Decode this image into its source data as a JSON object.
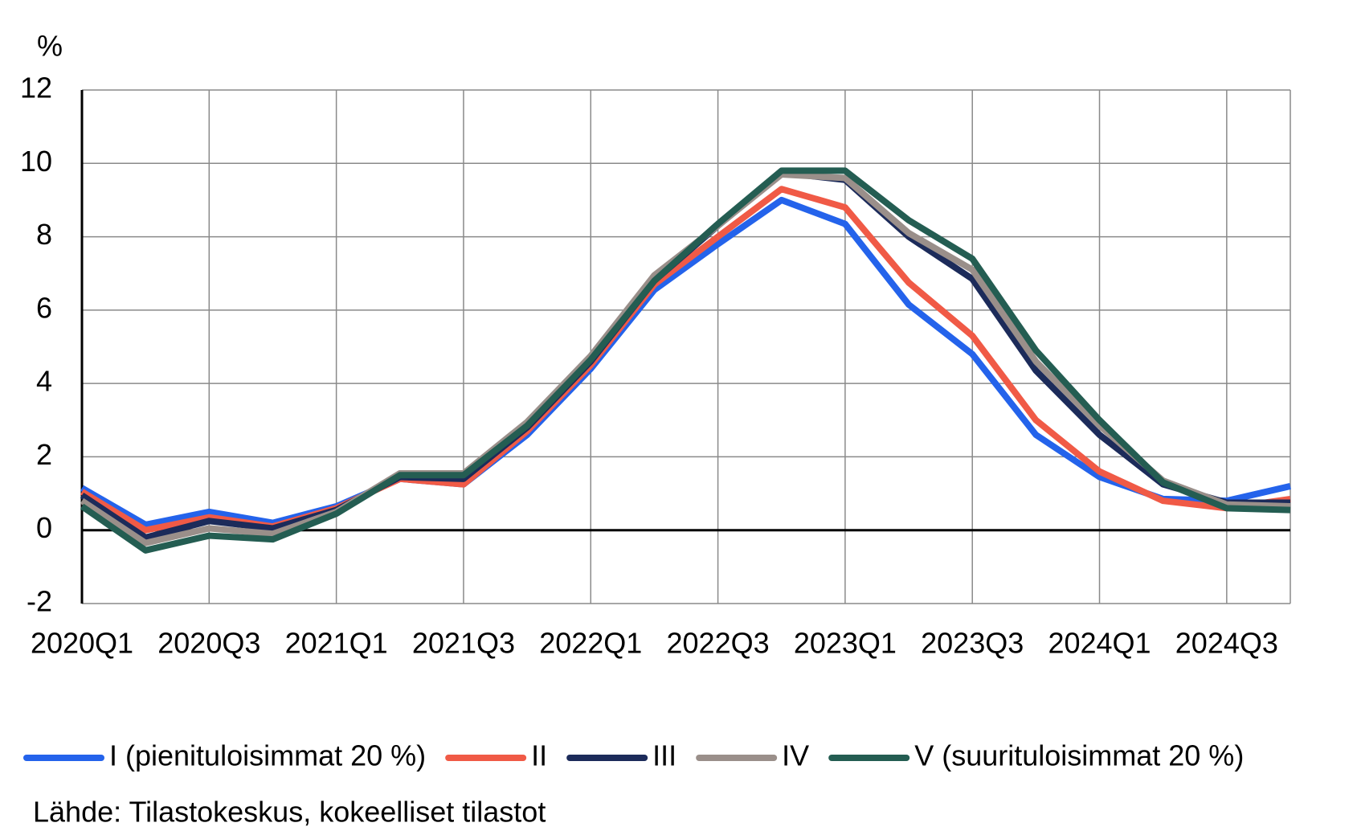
{
  "chart_data": {
    "type": "line",
    "y_label": "%",
    "source": "Lähde: Tilastokeskus, kokeelliset tilastot",
    "categories": [
      "2020Q1",
      null,
      "2020Q3",
      null,
      "2021Q1",
      null,
      "2021Q3",
      null,
      "2022Q1",
      null,
      "2022Q3",
      null,
      "2023Q1",
      null,
      "2023Q3",
      null,
      "2024Q1",
      null,
      "2024Q3",
      null
    ],
    "series": [
      {
        "name": "I (pienituloisimmat 20 %)",
        "color": "#2463eb",
        "values": [
          1.15,
          0.15,
          0.5,
          0.2,
          0.65,
          1.4,
          1.25,
          2.6,
          4.4,
          6.55,
          7.8,
          9.0,
          8.35,
          6.15,
          4.8,
          2.6,
          1.45,
          0.85,
          0.8,
          1.2
        ]
      },
      {
        "name": "II",
        "color": "#f05a46",
        "values": [
          1.05,
          0.0,
          0.35,
          0.1,
          0.6,
          1.4,
          1.25,
          2.7,
          4.5,
          6.7,
          8.0,
          9.3,
          8.8,
          6.75,
          5.3,
          3.0,
          1.6,
          0.8,
          0.6,
          0.85
        ]
      },
      {
        "name": "III",
        "color": "#1c2b5a",
        "values": [
          0.95,
          -0.2,
          0.25,
          0.05,
          0.55,
          1.45,
          1.4,
          2.8,
          4.6,
          6.8,
          8.3,
          9.75,
          9.55,
          8.0,
          6.85,
          4.35,
          2.6,
          1.25,
          0.75,
          0.75
        ]
      },
      {
        "name": "IV",
        "color": "#9a8f8a",
        "values": [
          0.8,
          -0.35,
          0.05,
          -0.1,
          0.5,
          1.55,
          1.55,
          2.95,
          4.75,
          6.95,
          8.3,
          9.7,
          9.6,
          8.1,
          7.1,
          4.6,
          2.85,
          1.35,
          0.7,
          0.65
        ]
      },
      {
        "name": "V (suurituloisimmat 20 %)",
        "color": "#245d52",
        "values": [
          0.65,
          -0.55,
          -0.15,
          -0.25,
          0.45,
          1.5,
          1.5,
          2.85,
          4.65,
          6.8,
          8.35,
          9.8,
          9.8,
          8.45,
          7.4,
          4.9,
          3.0,
          1.3,
          0.6,
          0.55
        ]
      }
    ],
    "ylim": [
      -2,
      12
    ],
    "yticks": [
      -2,
      0,
      2,
      4,
      6,
      8,
      10,
      12
    ],
    "grid": true
  }
}
